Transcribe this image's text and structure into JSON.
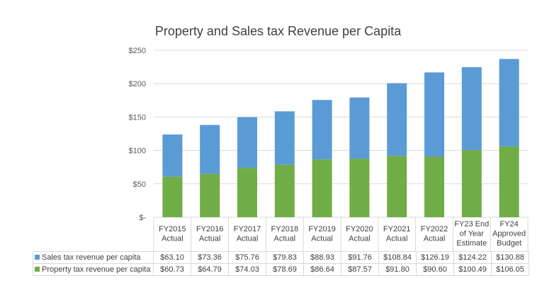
{
  "chart_data": {
    "type": "bar",
    "stacked": true,
    "title": "Property and Sales tax Revenue per Capita",
    "categories": [
      [
        "FY2015",
        "Actual"
      ],
      [
        "FY2016",
        "Actual"
      ],
      [
        "FY2017",
        "Actual"
      ],
      [
        "FY2018",
        "Actual"
      ],
      [
        "FY2019",
        "Actual"
      ],
      [
        "FY2020",
        "Actual"
      ],
      [
        "FY2021",
        "Actual"
      ],
      [
        "FY2022",
        "Actual"
      ],
      [
        "FY23 End",
        "of Year",
        "Estimate"
      ],
      [
        "FY24",
        "Approved",
        "Budget"
      ]
    ],
    "series": [
      {
        "name": "Sales tax revenue per capita",
        "color": "#5b9bd5",
        "values": [
          63.1,
          73.36,
          75.76,
          79.83,
          88.93,
          91.76,
          108.84,
          126.19,
          124.22,
          130.88
        ],
        "labels": [
          "$63.10",
          "$73.36",
          "$75.76",
          "$79.83",
          "$88.93",
          "$91.76",
          "$108.84",
          "$126.19",
          "$124.22",
          "$130.88"
        ]
      },
      {
        "name": "Property tax revenue per capita",
        "color": "#70ad47",
        "values": [
          60.73,
          64.79,
          74.03,
          78.69,
          86.64,
          87.57,
          91.8,
          90.6,
          100.49,
          106.05
        ],
        "labels": [
          "$60.73",
          "$64.79",
          "$74.03",
          "$78.69",
          "$86.64",
          "$87.57",
          "$91.80",
          "$90.60",
          "$100.49",
          "$106.05"
        ]
      }
    ],
    "stack_order_bottom_to_top": [
      "Property tax revenue per capita",
      "Sales tax revenue per capita"
    ],
    "ylim": [
      0,
      250
    ],
    "yticks": [
      {
        "value": 250,
        "label": "$250"
      },
      {
        "value": 200,
        "label": "$200"
      },
      {
        "value": 150,
        "label": "$150"
      },
      {
        "value": 100,
        "label": "$100"
      },
      {
        "value": 50,
        "label": "$50"
      },
      {
        "value": 0,
        "label": "$-"
      }
    ],
    "grid": true,
    "legend": "data-table"
  }
}
